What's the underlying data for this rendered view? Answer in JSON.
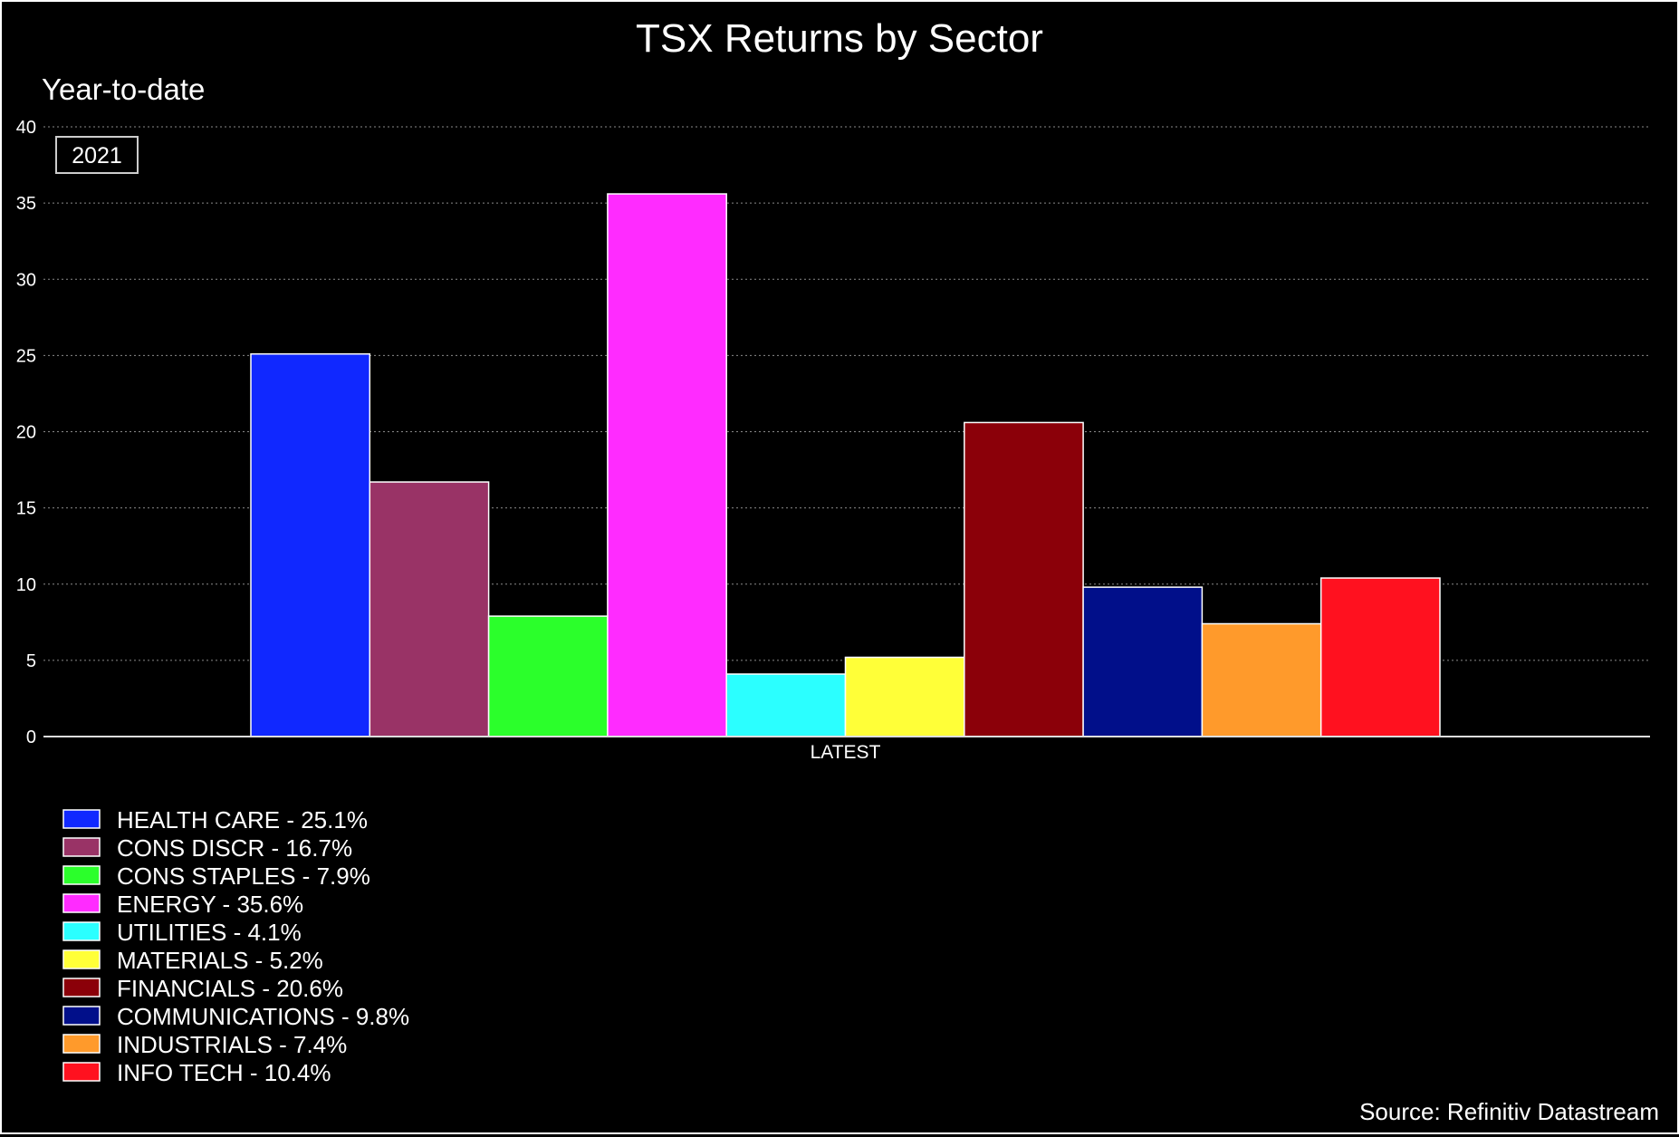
{
  "title": "TSX Returns by Sector",
  "subtitle": "Year-to-date",
  "badge": "2021",
  "source": "Source: Refinitiv Datastream",
  "chart_data": {
    "type": "bar",
    "title": "TSX Returns by Sector",
    "subtitle": "Year-to-date",
    "xlabel": "",
    "ylabel": "",
    "categories": [
      "LATEST"
    ],
    "ylim": [
      0,
      40
    ],
    "yticks": [
      "0",
      "5",
      "10",
      "15",
      "20",
      "25",
      "30",
      "35",
      "40"
    ],
    "grid": true,
    "legend_position": "bottom-left",
    "series": [
      {
        "name": "HEALTH CARE - 25.1%",
        "values": [
          25.1
        ],
        "color": "#1028ff"
      },
      {
        "name": "CONS DISCR - 16.7%",
        "values": [
          16.7
        ],
        "color": "#993366"
      },
      {
        "name": "CONS STAPLES - 7.9%",
        "values": [
          7.9
        ],
        "color": "#2bff2b"
      },
      {
        "name": "ENERGY - 35.6%",
        "values": [
          35.6
        ],
        "color": "#ff2bff"
      },
      {
        "name": "UTILITIES - 4.1%",
        "values": [
          4.1
        ],
        "color": "#2bffff"
      },
      {
        "name": "MATERIALS - 5.2%",
        "values": [
          5.2
        ],
        "color": "#ffff38"
      },
      {
        "name": "FINANCIALS - 20.6%",
        "values": [
          20.6
        ],
        "color": "#8b0009"
      },
      {
        "name": "COMMUNICATIONS - 9.8%",
        "values": [
          9.8
        ],
        "color": "#010f8a"
      },
      {
        "name": "INDUSTRIALS - 7.4%",
        "values": [
          7.4
        ],
        "color": "#ff9a2b"
      },
      {
        "name": "INFO TECH - 10.4%",
        "values": [
          10.4
        ],
        "color": "#ff111f"
      }
    ]
  }
}
